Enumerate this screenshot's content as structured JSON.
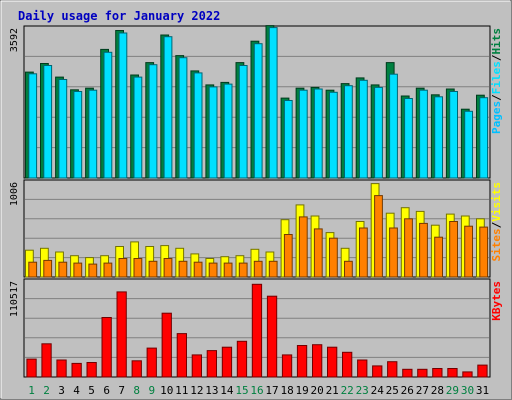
{
  "chart_data": {
    "type": "bar",
    "title": "Daily usage for January 2022",
    "days": [
      "1",
      "2",
      "3",
      "4",
      "5",
      "6",
      "7",
      "8",
      "9",
      "10",
      "11",
      "12",
      "13",
      "14",
      "15",
      "16",
      "17",
      "18",
      "19",
      "20",
      "21",
      "22",
      "23",
      "24",
      "25",
      "26",
      "27",
      "28",
      "29",
      "30",
      "31"
    ],
    "weekend_days": [
      "1",
      "2",
      "8",
      "9",
      "15",
      "16",
      "22",
      "23",
      "29",
      "30"
    ],
    "panels": [
      {
        "id": "pages-files-hits",
        "max_label": "3592",
        "ymax": 3592,
        "right_legend": [
          "Pages",
          "Files",
          "Hits"
        ],
        "series": [
          {
            "name": "Hits",
            "color": "#008040",
            "values": [
              2570,
              2780,
              2450,
              2140,
              2180,
              3120,
              3580,
              2500,
              2800,
              3470,
              2970,
              2600,
              2260,
              2320,
              2800,
              3320,
              3700,
              1940,
              2180,
              2200,
              2130,
              2290,
              2430,
              2260,
              2800,
              1990,
              2180,
              2020,
              2160,
              1670,
              2010
            ]
          },
          {
            "name": "Files",
            "color": "#00e0ff",
            "values": [
              2530,
              2730,
              2390,
              2100,
              2130,
              3050,
              3520,
              2450,
              2750,
              3430,
              2920,
              2550,
              2210,
              2280,
              2730,
              3260,
              3650,
              1880,
              2130,
              2160,
              2080,
              2240,
              2370,
              2200,
              2520,
              1930,
              2130,
              1970,
              2100,
              1620,
              1950
            ]
          },
          {
            "name": "Pages",
            "color": "#00c0ff",
            "values": []
          }
        ]
      },
      {
        "id": "sites-visits",
        "max_label": "1006",
        "ymax": 1006,
        "right_legend": [
          "Sites",
          "Visits"
        ],
        "series": [
          {
            "name": "Visits",
            "color": "#ffff00",
            "values": [
              290,
              310,
              270,
              230,
              210,
              230,
              330,
              380,
              330,
              340,
              310,
              250,
              200,
              220,
              230,
              300,
              270,
              620,
              780,
              660,
              480,
              310,
              600,
              1010,
              690,
              750,
              710,
              560,
              680,
              660,
              630
            ]
          },
          {
            "name": "Sites",
            "color": "#ff8000",
            "values": [
              160,
              180,
              160,
              150,
              140,
              150,
              200,
              200,
              170,
              200,
              170,
              160,
              150,
              150,
              150,
              170,
              170,
              460,
              650,
              520,
              420,
              170,
              530,
              880,
              530,
              630,
              580,
              430,
              600,
              550,
              540
            ]
          }
        ]
      },
      {
        "id": "kbytes",
        "max_label": "110517",
        "ymax": 110517,
        "right_legend": [
          "KBytes"
        ],
        "series": [
          {
            "name": "KBytes",
            "color": "#ff0000",
            "values": [
              21000,
              39000,
              20000,
              16000,
              17000,
              70000,
              100000,
              19000,
              34000,
              75000,
              51000,
              26000,
              31000,
              35000,
              42000,
              109000,
              95000,
              26000,
              37000,
              38000,
              35000,
              29000,
              20000,
              13000,
              18000,
              9000,
              9000,
              10000,
              10000,
              6000,
              14000
            ]
          }
        ]
      }
    ],
    "legend_colors": {
      "Pages": "#00c0ff",
      "Files": "#00e0ff",
      "Hits": "#008040",
      "Sites": "#ff8000",
      "Visits": "#ffff00",
      "KBytes": "#ff0000",
      "separator": "#000000"
    },
    "day_label_colors": {
      "weekday": "#000000",
      "weekend": "#008040"
    }
  }
}
